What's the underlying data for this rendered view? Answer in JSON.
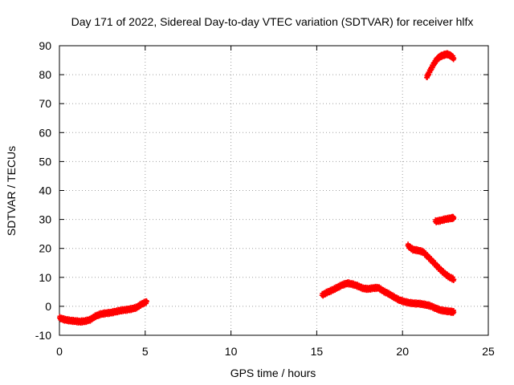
{
  "chart_data": {
    "type": "scatter",
    "title": "Day 171 of 2022, Sidereal Day-to-day VTEC variation (SDTVAR) for receiver hlfx",
    "xlabel": "GPS time / hours",
    "ylabel": "SDTVAR / TECUs",
    "xlim": [
      0,
      25
    ],
    "ylim": [
      -10,
      90
    ],
    "xticks": [
      0,
      5,
      10,
      15,
      20,
      25
    ],
    "yticks": [
      -10,
      0,
      10,
      20,
      30,
      40,
      50,
      60,
      70,
      80,
      90
    ],
    "grid": true,
    "marker_color": "#ff0000",
    "series": [
      {
        "name": "segment-1",
        "x": [
          0.0,
          0.3,
          0.6,
          0.9,
          1.2,
          1.5,
          1.8,
          2.1,
          2.4,
          2.7,
          3.0,
          3.3,
          3.6,
          3.9,
          4.2,
          4.5,
          4.8,
          5.1
        ],
        "y": [
          -4.0,
          -4.6,
          -4.9,
          -5.1,
          -5.3,
          -5.1,
          -4.6,
          -3.4,
          -2.7,
          -2.4,
          -2.2,
          -1.8,
          -1.4,
          -1.2,
          -0.9,
          -0.4,
          0.8,
          1.6
        ]
      },
      {
        "name": "segment-2",
        "x": [
          15.3,
          15.6,
          15.9,
          16.2,
          16.5,
          16.8,
          17.1,
          17.4,
          17.7,
          18.0,
          18.3,
          18.6,
          18.9,
          19.2,
          19.5,
          19.8,
          20.1,
          20.4,
          20.7,
          21.0,
          21.3,
          21.6,
          21.9,
          22.2,
          22.5,
          22.8,
          23.0
        ],
        "y": [
          3.8,
          4.8,
          5.6,
          6.5,
          7.4,
          8.0,
          7.6,
          7.0,
          6.2,
          6.0,
          6.3,
          6.4,
          5.2,
          4.3,
          3.2,
          2.2,
          1.6,
          1.2,
          1.0,
          0.9,
          0.6,
          0.2,
          -0.6,
          -1.3,
          -1.6,
          -1.8,
          -2.0
        ]
      },
      {
        "name": "segment-3",
        "x": [
          20.3,
          20.6,
          20.9,
          21.2,
          21.5,
          21.8,
          22.1,
          22.4,
          22.7,
          23.0
        ],
        "y": [
          21.0,
          19.6,
          19.3,
          18.8,
          17.0,
          15.2,
          13.3,
          11.6,
          10.2,
          9.3
        ]
      },
      {
        "name": "segment-4",
        "x": [
          21.9,
          22.2,
          22.5,
          22.8,
          23.0
        ],
        "y": [
          29.3,
          29.6,
          30.1,
          30.4,
          30.6
        ]
      },
      {
        "name": "segment-5",
        "x": [
          21.4,
          21.6,
          21.8,
          22.0,
          22.2,
          22.4,
          22.6,
          22.8,
          23.0
        ],
        "y": [
          79.0,
          81.3,
          83.5,
          85.3,
          86.3,
          86.8,
          87.1,
          86.6,
          85.6
        ]
      }
    ]
  }
}
